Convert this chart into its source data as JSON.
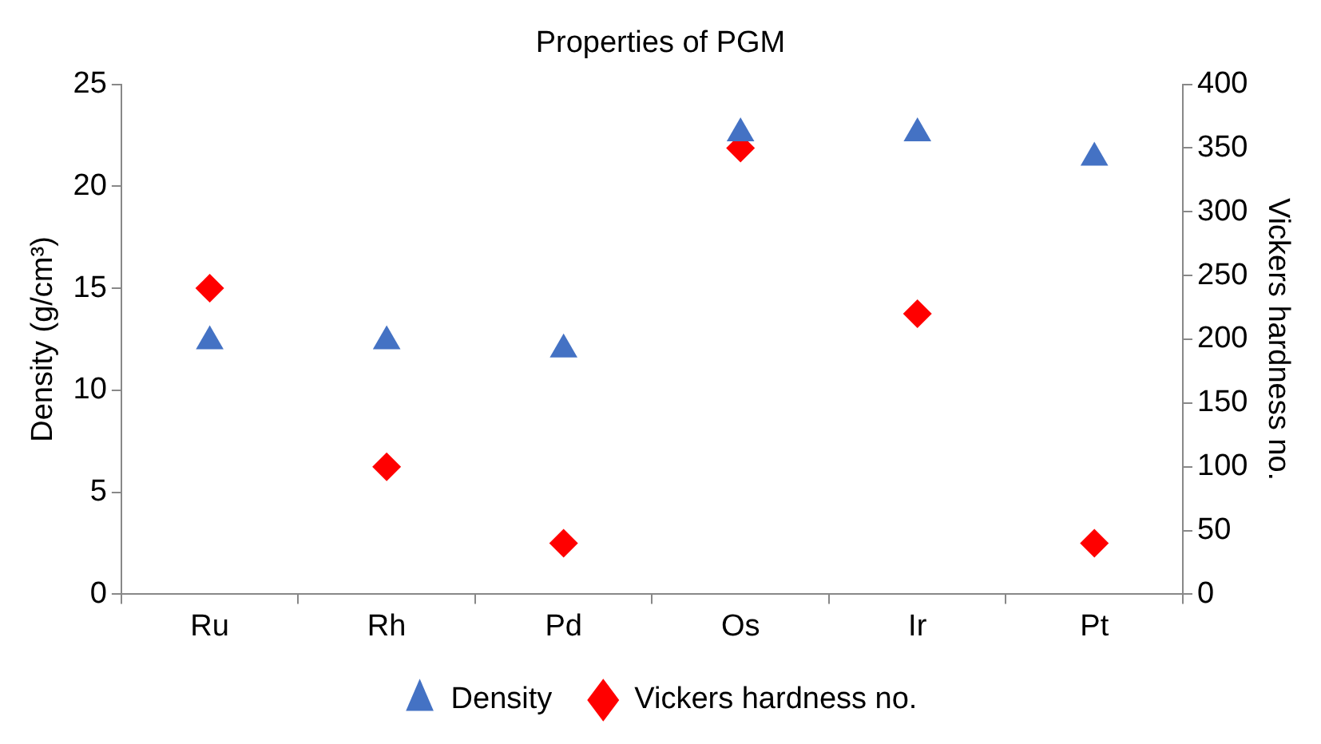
{
  "chart_data": {
    "type": "scatter",
    "title": "Properties of PGM",
    "ylabel": "Density (g/cm³)",
    "y2label": "Vickers hardness no.",
    "categories": [
      "Ru",
      "Rh",
      "Pd",
      "Os",
      "Ir",
      "Pt"
    ],
    "series": [
      {
        "name": "Density",
        "color": "#4472c4",
        "marker": "triangle",
        "values": [
          12.4,
          12.4,
          12.0,
          22.6,
          22.6,
          21.4
        ]
      },
      {
        "name": "Vickers hardness no.",
        "color": "#ff0000",
        "marker": "diamond",
        "axis": "y2",
        "values": [
          240,
          100,
          40,
          350,
          220,
          40
        ]
      }
    ],
    "ylim": [
      0,
      25
    ],
    "yticks": [
      0,
      5,
      10,
      15,
      20,
      25
    ],
    "y2lim": [
      0,
      400
    ],
    "y2ticks": [
      0,
      50,
      100,
      150,
      200,
      250,
      300,
      350,
      400
    ],
    "grid": false,
    "legend": "bottom"
  }
}
